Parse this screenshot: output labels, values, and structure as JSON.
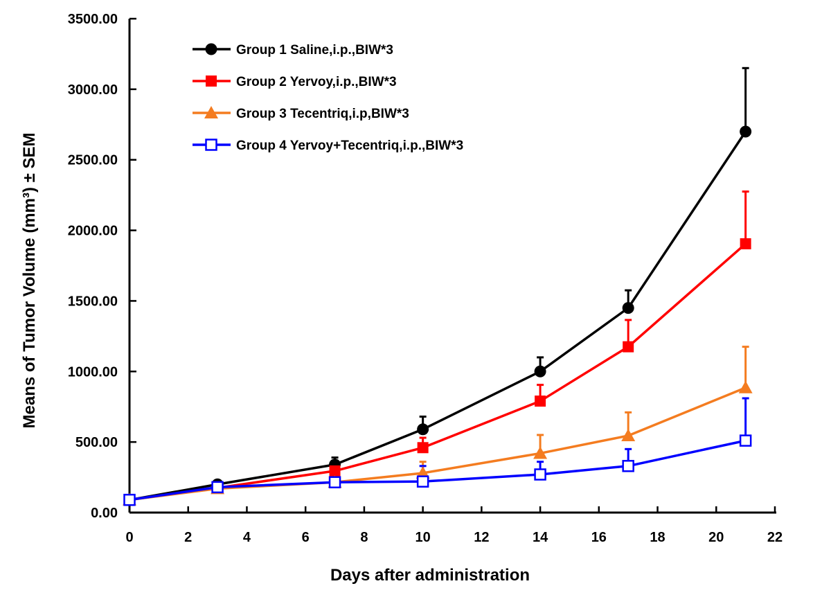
{
  "chart_data": {
    "type": "line",
    "title": "",
    "xlabel": "Days after administration",
    "ylabel": "Means of Tumor Volume (mm³) ± SEM",
    "xlim": [
      0,
      22
    ],
    "ylim": [
      0,
      3500
    ],
    "x_ticks": [
      0,
      2,
      4,
      6,
      8,
      10,
      12,
      14,
      16,
      18,
      20,
      22
    ],
    "y_ticks": [
      0,
      500,
      1000,
      1500,
      2000,
      2500,
      3000,
      3500
    ],
    "x_tick_labels": [
      "0",
      "2",
      "4",
      "6",
      "8",
      "10",
      "12",
      "14",
      "16",
      "18",
      "20",
      "22"
    ],
    "y_tick_labels": [
      "0.00",
      "500.00",
      "1000.00",
      "1500.00",
      "2000.00",
      "2500.00",
      "3000.00",
      "3500.00"
    ],
    "grid": false,
    "legend_position": "top-left",
    "x": [
      0,
      3,
      7,
      10,
      14,
      17,
      21
    ],
    "series": [
      {
        "name": "Group 1 Saline,i.p.,BIW*3",
        "color": "#000000",
        "marker": "circle",
        "values": [
          90,
          200,
          340,
          590,
          1000,
          1450,
          2700
        ],
        "sem": [
          10,
          20,
          50,
          90,
          100,
          125,
          450
        ]
      },
      {
        "name": "Group 2 Yervoy,i.p.,BIW*3",
        "color": "#ff0000",
        "marker": "square",
        "values": [
          90,
          175,
          295,
          460,
          790,
          1175,
          1905
        ],
        "sem": [
          10,
          15,
          35,
          70,
          115,
          190,
          370
        ]
      },
      {
        "name": "Group 3 Tecentriq,i.p,BIW*3",
        "color": "#f47c20",
        "marker": "triangle",
        "values": [
          90,
          170,
          215,
          280,
          420,
          545,
          885
        ],
        "sem": [
          10,
          15,
          25,
          80,
          130,
          165,
          290
        ]
      },
      {
        "name": "Group 4 Yervoy+Tecentriq,i.p.,BIW*3",
        "color": "#0000ff",
        "marker": "open-square",
        "values": [
          90,
          180,
          215,
          220,
          270,
          330,
          510
        ],
        "sem": [
          10,
          15,
          20,
          110,
          90,
          120,
          300
        ]
      }
    ]
  }
}
